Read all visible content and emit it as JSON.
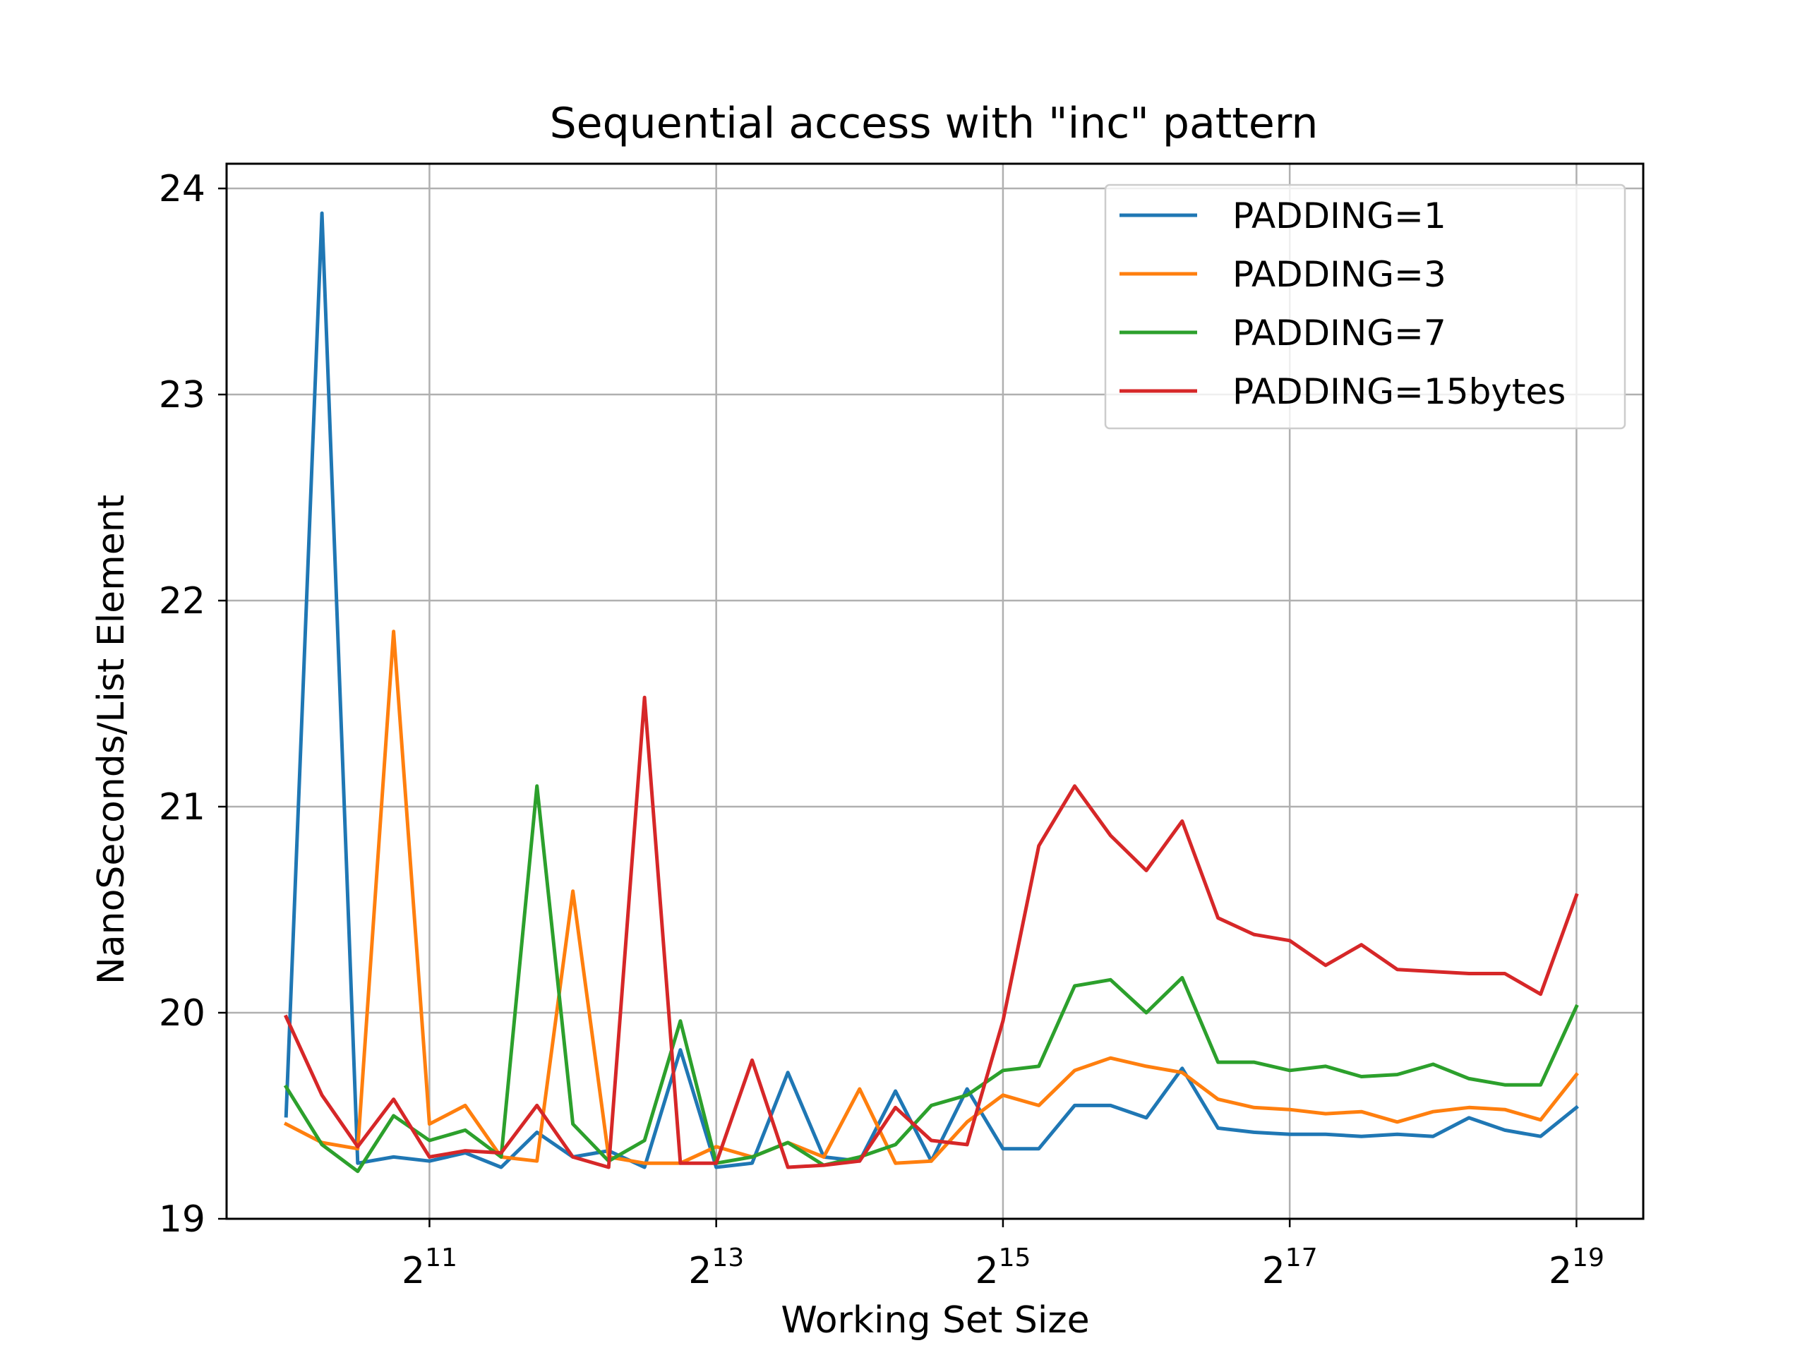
{
  "chart_data": {
    "type": "line",
    "title": "Sequential access with \"inc\" pattern",
    "xlabel": "Working Set Size",
    "ylabel": "NanoSeconds/List Element",
    "x_scale": "log2",
    "x_ticks": [
      {
        "value": 2048,
        "base": "2",
        "exp": "11"
      },
      {
        "value": 8192,
        "base": "2",
        "exp": "13"
      },
      {
        "value": 32768,
        "base": "2",
        "exp": "15"
      },
      {
        "value": 131072,
        "base": "2",
        "exp": "17"
      },
      {
        "value": 524288,
        "base": "2",
        "exp": "19"
      }
    ],
    "y_ticks": [
      19,
      20,
      21,
      22,
      23,
      24
    ],
    "xlim": [
      768,
      724000
    ],
    "ylim": [
      19,
      24.12
    ],
    "grid": true,
    "legend_position": "top-right",
    "x": [
      1024,
      1218,
      1448,
      1722,
      2048,
      2435,
      2896,
      3444,
      4096,
      4871,
      5793,
      6889,
      8192,
      9742,
      11585,
      13777,
      16384,
      19484,
      23170,
      27554,
      32768,
      38968,
      46341,
      55109,
      65536,
      77936,
      92682,
      110218,
      131072,
      155872,
      185364,
      220436,
      262144,
      311744,
      370728,
      440872,
      524288
    ],
    "series": [
      {
        "name": "PADDING=1",
        "color": "#1f77b4",
        "values": [
          19.5,
          23.88,
          19.27,
          19.3,
          19.28,
          19.32,
          19.25,
          19.42,
          19.3,
          19.33,
          19.25,
          19.82,
          19.25,
          19.27,
          19.71,
          19.3,
          19.28,
          19.62,
          19.28,
          19.63,
          19.34,
          19.34,
          19.55,
          19.55,
          19.49,
          19.73,
          19.44,
          19.42,
          19.41,
          19.41,
          19.4,
          19.41,
          19.4,
          19.49,
          19.43,
          19.4,
          19.54
        ]
      },
      {
        "name": "PADDING=3",
        "color": "#ff7f0e",
        "values": [
          19.46,
          19.37,
          19.34,
          21.85,
          19.46,
          19.55,
          19.3,
          19.28,
          20.59,
          19.3,
          19.27,
          19.27,
          19.35,
          19.3,
          19.37,
          19.3,
          19.63,
          19.27,
          19.28,
          19.47,
          19.6,
          19.55,
          19.72,
          19.78,
          19.74,
          19.71,
          19.58,
          19.54,
          19.53,
          19.51,
          19.52,
          19.47,
          19.52,
          19.54,
          19.53,
          19.48,
          19.7
        ]
      },
      {
        "name": "PADDING=7",
        "color": "#2ca02c",
        "values": [
          19.64,
          19.36,
          19.23,
          19.5,
          19.38,
          19.43,
          19.3,
          21.1,
          19.46,
          19.28,
          19.38,
          19.96,
          19.27,
          19.3,
          19.37,
          19.26,
          19.3,
          19.36,
          19.55,
          19.6,
          19.72,
          19.74,
          20.13,
          20.16,
          20.0,
          20.17,
          19.76,
          19.76,
          19.72,
          19.74,
          19.69,
          19.7,
          19.75,
          19.68,
          19.65,
          19.65,
          20.03
        ]
      },
      {
        "name": "PADDING=15bytes",
        "color": "#d62728",
        "values": [
          19.98,
          19.6,
          19.35,
          19.58,
          19.3,
          19.33,
          19.32,
          19.55,
          19.3,
          19.25,
          21.53,
          19.27,
          19.27,
          19.77,
          19.25,
          19.26,
          19.28,
          19.54,
          19.38,
          19.36,
          19.96,
          20.81,
          21.1,
          20.86,
          20.69,
          20.93,
          20.46,
          20.38,
          20.35,
          20.23,
          20.33,
          20.21,
          20.2,
          20.19,
          20.19,
          20.09,
          20.57
        ]
      }
    ]
  }
}
